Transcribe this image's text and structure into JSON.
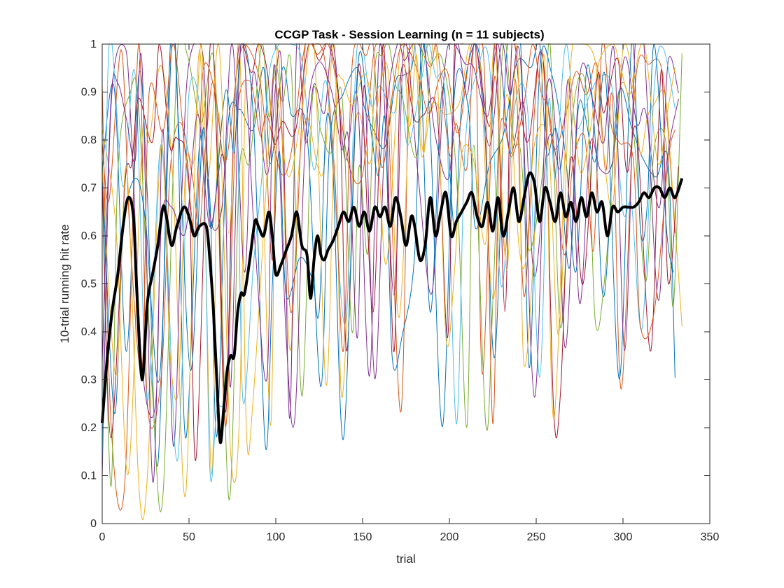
{
  "chart_data": {
    "type": "line",
    "title": "CCGP Task - Session Learning (n = 11 subjects)",
    "xlabel": "trial",
    "ylabel": "10-trial running hit rate",
    "xlim": [
      0,
      350
    ],
    "ylim": [
      0,
      1
    ],
    "xticks": [
      "0",
      "50",
      "100",
      "150",
      "200",
      "250",
      "300",
      "350"
    ],
    "yticks": [
      "0",
      "0.1",
      "0.2",
      "0.3",
      "0.4",
      "0.5",
      "0.6",
      "0.7",
      "0.8",
      "0.9",
      "1"
    ],
    "grid": false,
    "legend": "none",
    "subject_colors": [
      "#0072BD",
      "#D95319",
      "#EDB120",
      "#7E2F8E",
      "#77AC30",
      "#4DBEEE",
      "#A2142F",
      "#0072BD",
      "#D95319",
      "#EDB120",
      "#7E2F8E"
    ],
    "mean_series": {
      "color": "#000000",
      "x": [
        0,
        3,
        6,
        9,
        12,
        15,
        18,
        20,
        23,
        26,
        29,
        32,
        35,
        37,
        40,
        43,
        47,
        50,
        53,
        56,
        60,
        62,
        64,
        66,
        68,
        70,
        72,
        74,
        76,
        78,
        80,
        82,
        85,
        88,
        90,
        93,
        96,
        98,
        100,
        103,
        106,
        109,
        112,
        115,
        118,
        120,
        122,
        124,
        126,
        128,
        130,
        133,
        136,
        139,
        142,
        145,
        148,
        151,
        154,
        157,
        160,
        163,
        166,
        169,
        172,
        175,
        178,
        180,
        183,
        186,
        189,
        192,
        195,
        198,
        201,
        204,
        207,
        210,
        213,
        216,
        219,
        222,
        225,
        228,
        231,
        234,
        237,
        240,
        243,
        246,
        249,
        252,
        255,
        258,
        261,
        264,
        267,
        270,
        273,
        276,
        279,
        282,
        285,
        288,
        291,
        294,
        297,
        300,
        303,
        306,
        309,
        312,
        315,
        318,
        321,
        324,
        327,
        330,
        334
      ],
      "y": [
        0.21,
        0.35,
        0.45,
        0.52,
        0.62,
        0.68,
        0.64,
        0.48,
        0.3,
        0.46,
        0.52,
        0.58,
        0.66,
        0.64,
        0.58,
        0.62,
        0.66,
        0.64,
        0.6,
        0.62,
        0.62,
        0.55,
        0.45,
        0.3,
        0.17,
        0.24,
        0.32,
        0.35,
        0.35,
        0.44,
        0.48,
        0.48,
        0.55,
        0.63,
        0.62,
        0.6,
        0.65,
        0.6,
        0.52,
        0.54,
        0.57,
        0.6,
        0.65,
        0.58,
        0.56,
        0.47,
        0.55,
        0.6,
        0.56,
        0.55,
        0.57,
        0.59,
        0.62,
        0.65,
        0.63,
        0.66,
        0.62,
        0.65,
        0.61,
        0.66,
        0.64,
        0.66,
        0.62,
        0.68,
        0.64,
        0.58,
        0.64,
        0.62,
        0.55,
        0.58,
        0.68,
        0.6,
        0.65,
        0.69,
        0.6,
        0.63,
        0.65,
        0.67,
        0.69,
        0.64,
        0.62,
        0.67,
        0.61,
        0.68,
        0.6,
        0.65,
        0.7,
        0.63,
        0.68,
        0.73,
        0.71,
        0.63,
        0.7,
        0.67,
        0.63,
        0.69,
        0.64,
        0.67,
        0.63,
        0.68,
        0.64,
        0.69,
        0.65,
        0.67,
        0.6,
        0.66,
        0.65,
        0.66,
        0.66,
        0.66,
        0.67,
        0.69,
        0.68,
        0.7,
        0.7,
        0.68,
        0.7,
        0.68,
        0.72
      ]
    }
  }
}
